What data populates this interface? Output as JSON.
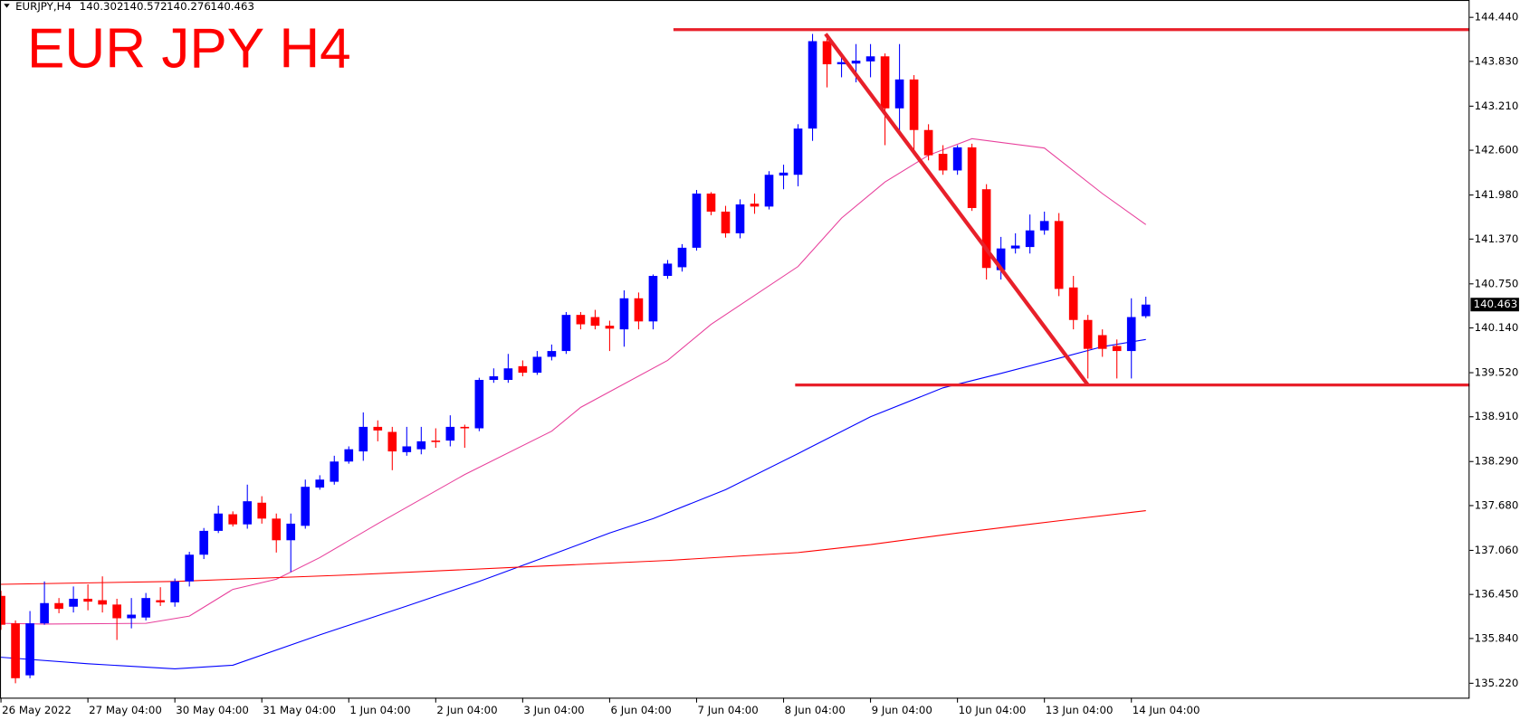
{
  "chart_data": {
    "type": "candlestick",
    "symbol": "EURJPY,H4",
    "title": "EUR JPY H4",
    "up_color": "#0000ff",
    "down_color": "#ff0000",
    "categories": [
      "26 May 2022",
      null,
      null,
      null,
      null,
      null,
      "27 May 04:00",
      null,
      null,
      null,
      null,
      null,
      "30 May 04:00",
      null,
      null,
      null,
      null,
      null,
      "31 May 04:00",
      null,
      null,
      null,
      null,
      null,
      "1 Jun 04:00",
      null,
      null,
      null,
      null,
      null,
      "2 Jun 04:00",
      null,
      null,
      null,
      null,
      null,
      "3 Jun 04:00",
      null,
      null,
      null,
      null,
      null,
      "6 Jun 04:00",
      null,
      null,
      null,
      null,
      null,
      "7 Jun 04:00",
      null,
      null,
      null,
      null,
      null,
      "8 Jun 04:00",
      null,
      null,
      null,
      null,
      null,
      "9 Jun 04:00",
      null,
      null,
      null,
      null,
      null,
      "10 Jun 04:00",
      null,
      null,
      null,
      null,
      null,
      "13 Jun 04:00",
      null,
      null,
      null,
      null,
      null,
      "14 Jun 04:00",
      null
    ],
    "open": [
      136.43,
      136.05,
      135.33,
      136.05,
      136.33,
      136.28,
      136.39,
      136.37,
      136.31,
      136.12,
      136.13,
      136.37,
      136.34,
      136.63,
      137.0,
      137.33,
      137.56,
      137.42,
      137.72,
      137.5,
      137.2,
      137.4,
      137.93,
      138.01,
      138.29,
      138.43,
      138.77,
      138.7,
      138.42,
      138.46,
      138.58,
      138.58,
      138.77,
      138.75,
      139.42,
      139.42,
      139.61,
      139.52,
      139.74,
      139.82,
      140.32,
      140.29,
      140.17,
      140.12,
      140.55,
      140.23,
      140.86,
      140.98,
      141.25,
      142.0,
      141.75,
      141.45,
      141.86,
      141.82,
      142.25,
      142.26,
      142.9,
      144.11,
      143.79,
      143.8,
      143.83,
      143.9,
      143.18,
      143.58,
      142.88,
      142.55,
      142.32,
      142.64,
      142.06,
      140.94,
      141.24,
      141.26,
      141.49,
      141.62,
      140.7,
      140.25,
      140.04,
      139.89,
      139.82,
      140.302
    ],
    "high": [
      136.5,
      136.09,
      136.22,
      136.63,
      136.4,
      136.56,
      136.59,
      136.7,
      136.39,
      136.4,
      136.47,
      136.55,
      136.67,
      137.04,
      137.37,
      137.68,
      137.6,
      137.97,
      137.81,
      137.57,
      137.57,
      138.04,
      138.1,
      138.37,
      138.5,
      138.97,
      138.86,
      138.77,
      138.77,
      138.77,
      138.75,
      138.93,
      138.8,
      139.45,
      139.58,
      139.78,
      139.69,
      139.82,
      139.91,
      140.36,
      140.36,
      140.39,
      140.24,
      140.66,
      140.63,
      140.88,
      141.08,
      141.3,
      142.05,
      142.02,
      141.83,
      141.92,
      142.0,
      142.31,
      142.4,
      142.96,
      144.21,
      144.21,
      143.94,
      144.07,
      144.07,
      143.94,
      144.07,
      143.64,
      142.96,
      142.67,
      142.67,
      142.69,
      142.13,
      141.4,
      141.45,
      141.71,
      141.75,
      141.73,
      140.86,
      140.32,
      140.12,
      139.98,
      140.55,
      140.572
    ],
    "low": [
      135.96,
      135.22,
      135.29,
      136.03,
      136.19,
      136.2,
      136.23,
      136.2,
      135.82,
      135.98,
      136.09,
      136.29,
      136.28,
      136.56,
      136.94,
      137.3,
      137.39,
      137.36,
      137.43,
      137.03,
      136.76,
      137.36,
      137.9,
      137.97,
      138.26,
      138.3,
      138.57,
      138.17,
      138.37,
      138.39,
      138.48,
      138.5,
      138.48,
      138.71,
      139.38,
      139.38,
      139.47,
      139.49,
      139.69,
      139.78,
      140.12,
      140.12,
      139.82,
      139.88,
      140.12,
      140.12,
      140.82,
      140.92,
      141.21,
      141.7,
      141.39,
      141.38,
      141.72,
      141.78,
      142.06,
      142.1,
      142.73,
      143.47,
      143.61,
      143.54,
      143.61,
      142.67,
      142.8,
      142.6,
      142.46,
      142.26,
      142.26,
      141.76,
      140.81,
      140.81,
      141.17,
      141.17,
      141.43,
      140.58,
      140.12,
      139.44,
      139.74,
      139.44,
      139.44,
      140.276
    ],
    "close": [
      136.03,
      135.29,
      136.05,
      136.33,
      136.25,
      136.39,
      136.35,
      136.31,
      136.12,
      136.17,
      136.4,
      136.34,
      136.63,
      137.0,
      137.33,
      137.57,
      137.42,
      137.74,
      137.5,
      137.2,
      137.43,
      137.94,
      138.04,
      138.29,
      138.46,
      138.77,
      138.72,
      138.43,
      138.5,
      138.57,
      138.56,
      138.77,
      138.75,
      139.42,
      139.47,
      139.58,
      139.52,
      139.74,
      139.82,
      140.32,
      140.19,
      140.17,
      140.13,
      140.55,
      140.23,
      140.86,
      141.03,
      141.25,
      142.0,
      141.75,
      141.45,
      141.85,
      141.82,
      142.26,
      142.29,
      142.9,
      144.11,
      143.79,
      143.82,
      143.84,
      143.9,
      143.18,
      143.58,
      142.88,
      142.53,
      142.32,
      142.64,
      141.8,
      140.97,
      141.24,
      141.28,
      141.49,
      141.62,
      140.68,
      140.25,
      139.85,
      139.85,
      139.82,
      140.29,
      140.463
    ],
    "indicators": [
      {
        "color": "#e8409c",
        "x": [
          0,
          3,
          10,
          13,
          16,
          19,
          22,
          26,
          32,
          38,
          40,
          46,
          49,
          55,
          58,
          61,
          64,
          67,
          72,
          76,
          79
        ],
        "values": [
          136.05,
          136.04,
          136.05,
          136.15,
          136.52,
          136.66,
          136.96,
          137.43,
          138.11,
          138.71,
          139.04,
          139.69,
          140.19,
          140.99,
          141.66,
          142.16,
          142.53,
          142.76,
          142.63,
          142.0,
          141.57
        ]
      },
      {
        "color": "#0000ff",
        "x": [
          0,
          6,
          12,
          16,
          22,
          28,
          33,
          38,
          42,
          45,
          50,
          55,
          60,
          65,
          69,
          73,
          76,
          79
        ],
        "values": [
          135.58,
          135.49,
          135.42,
          135.47,
          135.89,
          136.29,
          136.63,
          137.0,
          137.3,
          137.5,
          137.9,
          138.4,
          138.91,
          139.31,
          139.51,
          139.72,
          139.88,
          139.98
        ]
      },
      {
        "color": "#ff0000",
        "x": [
          0,
          12,
          24,
          36,
          46,
          55,
          60,
          66,
          73,
          79
        ],
        "values": [
          136.59,
          136.63,
          136.72,
          136.83,
          136.92,
          137.03,
          137.14,
          137.3,
          137.47,
          137.61
        ]
      }
    ],
    "drawings": {
      "color": "#e8202a",
      "levels": [
        {
          "from": 46.4,
          "value": 144.27
        },
        {
          "from": 54.8,
          "value": 139.35
        }
      ],
      "trendline": {
        "x": [
          56.9,
          75
        ],
        "values": [
          144.21,
          139.35
        ]
      }
    },
    "ylim": [
      135.02,
      144.68
    ],
    "yticks": [
      {
        "value": 144.44,
        "label": "144.440"
      },
      {
        "value": 143.83,
        "label": "143.830"
      },
      {
        "value": 143.21,
        "label": "143.210"
      },
      {
        "value": 142.6,
        "label": "142.600"
      },
      {
        "value": 141.98,
        "label": "141.980"
      },
      {
        "value": 141.37,
        "label": "141.370"
      },
      {
        "value": 140.75,
        "label": "140.750"
      },
      {
        "value": 140.14,
        "label": "140.140"
      },
      {
        "value": 139.52,
        "label": "139.520"
      },
      {
        "value": 138.91,
        "label": "138.910"
      },
      {
        "value": 138.29,
        "label": "138.290"
      },
      {
        "value": 137.68,
        "label": "137.680"
      },
      {
        "value": 137.06,
        "label": "137.060"
      },
      {
        "value": 136.45,
        "label": "136.450"
      },
      {
        "value": 135.84,
        "label": "135.840"
      },
      {
        "value": 135.22,
        "label": "135.220"
      }
    ]
  }
}
